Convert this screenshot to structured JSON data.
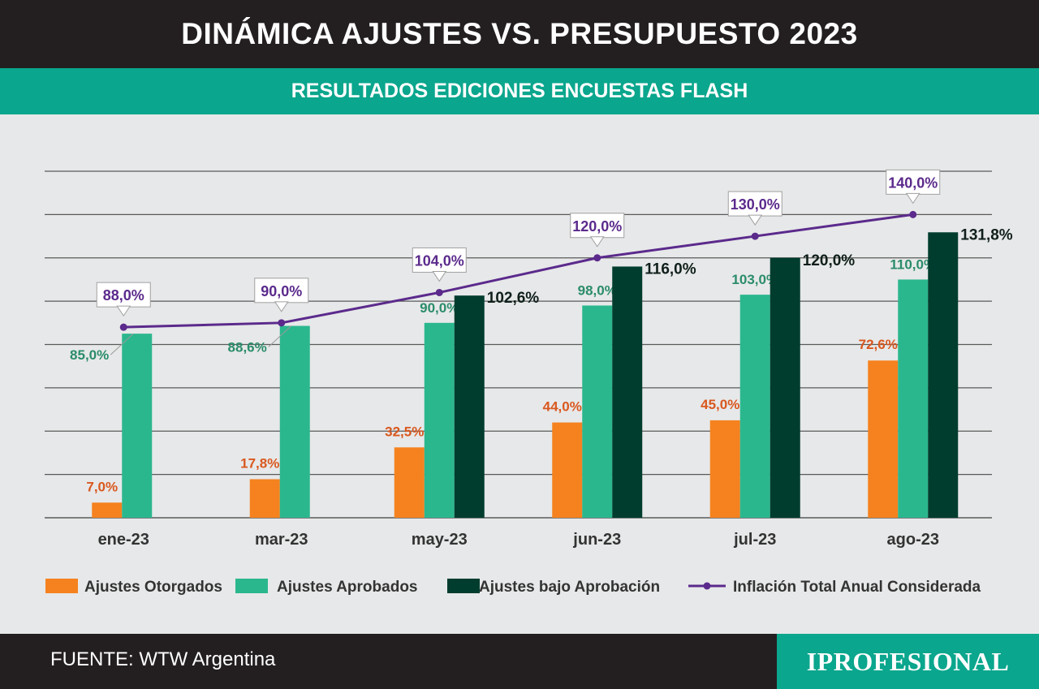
{
  "header": {
    "title": "DINÁMICA AJUSTES VS. PRESUPUESTO 2023",
    "subtitle": "RESULTADOS EDICIONES ENCUESTAS FLASH"
  },
  "footer": {
    "source": "FUENTE: WTW Argentina",
    "logo": "IPROFESIONAL"
  },
  "colors": {
    "otorgados": "#f5821f",
    "aprobados": "#2bb78e",
    "bajo_aprobacion": "#003d2e",
    "inflacion": "#5b2a8c",
    "otorgados_label": "#d9581f",
    "aprobados_label": "#2a8c6a"
  },
  "chart_data": {
    "type": "bar",
    "categories": [
      "ene-23",
      "mar-23",
      "may-23",
      "jun-23",
      "jul-23",
      "ago-23"
    ],
    "ylim": [
      0,
      160
    ],
    "grid": true,
    "legend_position": "bottom",
    "series": [
      {
        "name": "Ajustes Otorgados",
        "type": "bar",
        "values": [
          7.0,
          17.8,
          32.5,
          44.0,
          45.0,
          72.6
        ],
        "labels": [
          "7,0%",
          "17,8%",
          "32,5%",
          "44,0%",
          "45,0%",
          "72,6%"
        ]
      },
      {
        "name": "Ajustes Aprobados",
        "type": "bar",
        "values": [
          85.0,
          88.6,
          90.0,
          98.0,
          103.0,
          110.0
        ],
        "labels": [
          "85,0%",
          "88,6%",
          "90,0%",
          "98,0%",
          "103,0%",
          "110,0%"
        ]
      },
      {
        "name": "Ajustes bajo Aprobación",
        "type": "bar",
        "values": [
          null,
          null,
          102.6,
          116.0,
          120.0,
          131.8
        ],
        "labels": [
          "",
          "",
          "102,6%",
          "116,0%",
          "120,0%",
          "131,8%"
        ]
      },
      {
        "name": "Inflación Total Anual Considerada",
        "type": "line",
        "values": [
          88.0,
          90.0,
          104.0,
          120.0,
          130.0,
          140.0
        ],
        "labels": [
          "88,0%",
          "90,0%",
          "104,0%",
          "120,0%",
          "130,0%",
          "140,0%"
        ]
      }
    ]
  }
}
